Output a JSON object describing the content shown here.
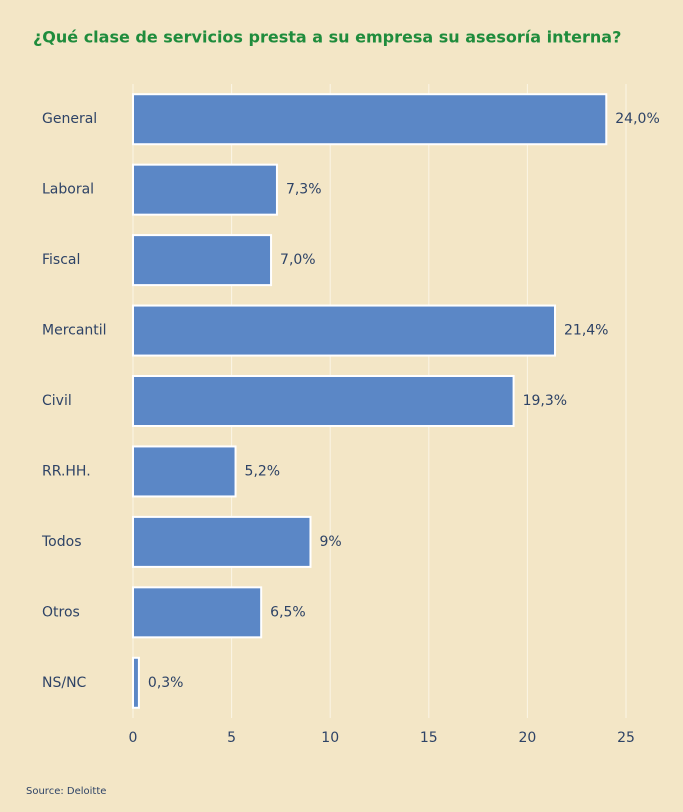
{
  "chart_data": {
    "type": "hbar",
    "title": "¿Qué clase de servicios presta a su empresa su asesoría interna?",
    "categories": [
      "General",
      "Laboral",
      "Fiscal",
      "Mercantil",
      "Civil",
      "RR.HH.",
      "Todos",
      "Otros",
      "NS/NC"
    ],
    "values": [
      24.0,
      7.3,
      7.0,
      21.4,
      19.3,
      5.2,
      9,
      6.5,
      0.3
    ],
    "value_labels": [
      "24,0%",
      "7,3%",
      "7,0%",
      "21,4%",
      "19,3%",
      "5,2%",
      "9%",
      "6,5%",
      "0,3%"
    ],
    "color": "#5b87c6",
    "xlim": [
      0,
      25
    ],
    "xticks": [
      0,
      5,
      10,
      15,
      20,
      25
    ],
    "grid": true,
    "source": "Source: Deloitte"
  }
}
